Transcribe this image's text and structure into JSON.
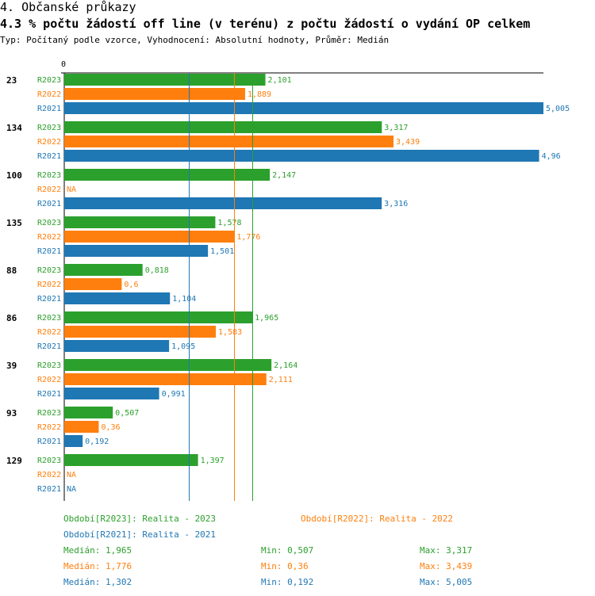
{
  "header": {
    "section_title": "4. Občanské průkazy",
    "chart_title": "4.3 % počtu žádostí off line (v terénu) z počtu žádostí o vydání OP celkem",
    "subtitle": "Typ: Počítaný podle vzorce, Vyhodnocení: Absolutní hodnoty, Průměr: Medián"
  },
  "colors": {
    "R2023": "#2ca02c",
    "R2022": "#ff7f0e",
    "R2021": "#1f77b4"
  },
  "chart_data": {
    "type": "bar",
    "orientation": "horizontal",
    "title": "4.3 % počtu žádostí off line (v terénu) z počtu žádostí o vydání OP celkem",
    "x_zero_label": "0",
    "xlim": [
      0,
      5.005
    ],
    "missing_label": "NA",
    "series_names": [
      "R2023",
      "R2022",
      "R2021"
    ],
    "groups": [
      {
        "label": "23",
        "values": [
          2.101,
          1.889,
          5.005
        ],
        "labels": [
          "2,101",
          "1,889",
          "5,005"
        ]
      },
      {
        "label": "134",
        "values": [
          3.317,
          3.439,
          4.96
        ],
        "labels": [
          "3,317",
          "3,439",
          "4,96"
        ]
      },
      {
        "label": "100",
        "values": [
          2.147,
          null,
          3.316
        ],
        "labels": [
          "2,147",
          "NA",
          "3,316"
        ]
      },
      {
        "label": "135",
        "values": [
          1.578,
          1.776,
          1.501
        ],
        "labels": [
          "1,578",
          "1,776",
          "1,501"
        ]
      },
      {
        "label": "88",
        "values": [
          0.818,
          0.6,
          1.104
        ],
        "labels": [
          "0,818",
          "0,6",
          "1,104"
        ]
      },
      {
        "label": "86",
        "values": [
          1.965,
          1.583,
          1.095
        ],
        "labels": [
          "1,965",
          "1,583",
          "1,095"
        ]
      },
      {
        "label": "39",
        "values": [
          2.164,
          2.111,
          0.991
        ],
        "labels": [
          "2,164",
          "2,111",
          "0,991"
        ]
      },
      {
        "label": "93",
        "values": [
          0.507,
          0.36,
          0.192
        ],
        "labels": [
          "0,507",
          "0,36",
          "0,192"
        ]
      },
      {
        "label": "129",
        "values": [
          1.397,
          null,
          null
        ],
        "labels": [
          "1,397",
          "NA",
          "NA"
        ]
      }
    ],
    "median_lines": {
      "R2023": 1.965,
      "R2022": 1.776,
      "R2021": 1.302
    }
  },
  "legend": {
    "period_R2023": "Období[R2023]: Realita - 2023",
    "period_R2022": "Období[R2022]: Realita - 2022",
    "period_R2021": "Období[R2021]: Realita - 2021",
    "stats": [
      {
        "key": "R2023",
        "median": "Medián: 1,965",
        "min": "Min: 0,507",
        "max": "Max: 3,317"
      },
      {
        "key": "R2022",
        "median": "Medián: 1,776",
        "min": "Min: 0,36",
        "max": "Max: 3,439"
      },
      {
        "key": "R2021",
        "median": "Medián: 1,302",
        "min": "Min: 0,192",
        "max": "Max: 5,005"
      }
    ]
  }
}
